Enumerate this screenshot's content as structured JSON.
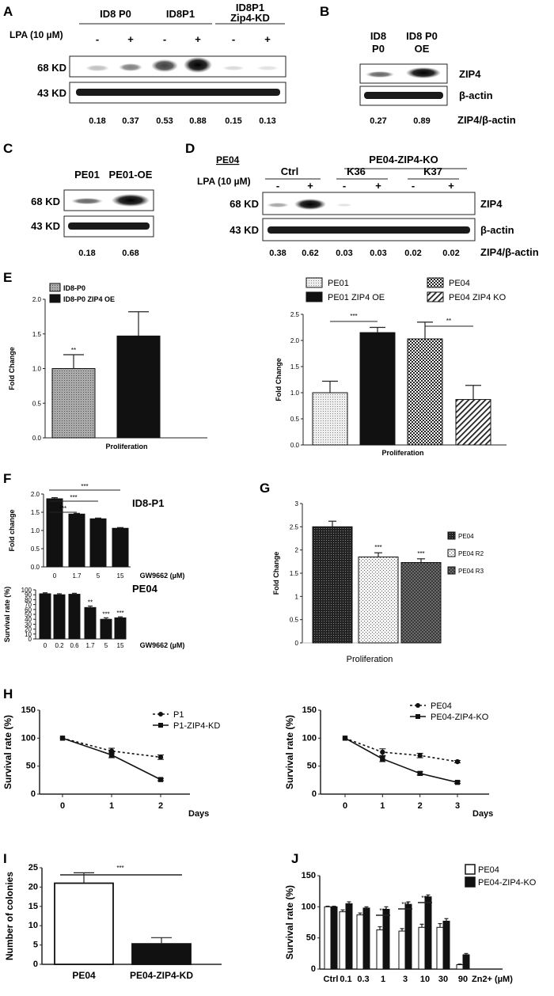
{
  "figure": {
    "A": {
      "panel": "A",
      "groups": [
        "ID8 P0",
        "ID8P1",
        "ID8P1\nZip4-KD"
      ],
      "treatment_label": "LPA (10 µM)",
      "signs": [
        "-",
        "+",
        "-",
        "+",
        "-",
        "+"
      ],
      "rows": [
        "68 KD",
        "43 KD"
      ],
      "quant": [
        "0.18",
        "0.37",
        "0.53",
        "0.88",
        "0.15",
        "0.13"
      ]
    },
    "B": {
      "panel": "B",
      "lanes": [
        "ID8\nP0",
        "ID8 P0\nOE"
      ],
      "rows": [
        "ZIP4",
        "β-actin"
      ],
      "quant": [
        "0.27",
        "0.89"
      ],
      "ratio_label": "ZIP4/β-actin"
    },
    "C": {
      "panel": "C",
      "lanes": [
        "PE01",
        "PE01-OE"
      ],
      "rows": [
        "68 KD",
        "43 KD"
      ],
      "quant": [
        "0.18",
        "0.68"
      ]
    },
    "D": {
      "panel": "D",
      "cell_line": "PE04",
      "group_header": "PE04-ZIP4-KO",
      "groups": [
        "Ctrl",
        "K36",
        "K37"
      ],
      "treatment_label": "LPA (10 µM)",
      "signs": [
        "-",
        "+",
        "-",
        "+",
        "-",
        "+"
      ],
      "rows_left": [
        "68 KD",
        "43 KD"
      ],
      "rows_right": [
        "ZIP4",
        "β-actin"
      ],
      "quant": [
        "0.38",
        "0.62",
        "0.03",
        "0.03",
        "0.02",
        "0.02"
      ],
      "ratio_label": "ZIP4/β-actin"
    },
    "E": {
      "panel": "E"
    },
    "F": {
      "panel": "F",
      "title_top": "ID8-P1",
      "title_bottom": "PE04"
    },
    "G": {
      "panel": "G"
    },
    "H": {
      "panel": "H"
    },
    "I": {
      "panel": "I"
    },
    "J": {
      "panel": "J"
    }
  },
  "chart_data": [
    {
      "id": "E1",
      "type": "bar",
      "title": "",
      "categories": [
        "ID8-P0",
        "ID8-P0 ZIP4 OE"
      ],
      "values": [
        1.0,
        1.47
      ],
      "errors": [
        0.2,
        0.35
      ],
      "xlabel": "Proliferation",
      "ylabel": "Fold Change",
      "ylim": [
        0,
        2.0
      ],
      "yticks": [
        "0.0",
        "0.5",
        "1.0",
        "1.5",
        "2.0"
      ],
      "annotations": [
        "**"
      ],
      "legend": [
        "ID8-P0",
        "ID8-P0 ZIP4 OE"
      ]
    },
    {
      "id": "E2",
      "type": "bar",
      "title": "",
      "categories": [
        "PE01",
        "PE01 ZIP4 OE",
        "PE04",
        "PE04 ZIP4 KO"
      ],
      "values": [
        1.0,
        2.15,
        2.03,
        0.87
      ],
      "errors": [
        0.22,
        0.1,
        0.32,
        0.27
      ],
      "xlabel": "Proliferation",
      "ylabel": "Fold Change",
      "ylim": [
        0,
        2.5
      ],
      "yticks": [
        "0.0",
        "0.5",
        "1.0",
        "1.5",
        "2.0",
        "2.5"
      ],
      "annotations": [
        "***",
        "**"
      ],
      "legend": [
        "PE01",
        "PE04",
        "PE01 ZIP4 OE",
        "PE04 ZIP4 KO"
      ]
    },
    {
      "id": "F1",
      "type": "bar",
      "title": "ID8-P1",
      "categories": [
        "0",
        "1.7",
        "5",
        "15"
      ],
      "values": [
        1.87,
        1.45,
        1.32,
        1.06
      ],
      "errors": [
        0.03,
        0.02,
        0.02,
        0.02
      ],
      "xlabel": "GW9662 (µM)",
      "ylabel": "Fold change",
      "ylim": [
        0,
        2.0
      ],
      "yticks": [
        "0.0",
        "0.5",
        "1.0",
        "1.5",
        "2.0"
      ],
      "annotations": [
        "***",
        "***",
        "***"
      ]
    },
    {
      "id": "F2",
      "type": "bar",
      "title": "PE04",
      "categories": [
        "0",
        "0.2",
        "0.6",
        "1.7",
        "5",
        "15"
      ],
      "values": [
        92,
        90,
        91,
        64,
        40,
        43
      ],
      "errors": [
        2,
        2,
        2,
        3,
        3,
        2
      ],
      "xlabel": "GW9662 (µM)",
      "ylabel": "Survival rate (%)",
      "ylim": [
        0,
        100
      ],
      "yticks": [
        "0",
        "10",
        "20",
        "30",
        "40",
        "50",
        "60",
        "70",
        "80",
        "90",
        "100"
      ],
      "annotations": [
        "**",
        "***",
        "***"
      ]
    },
    {
      "id": "G",
      "type": "bar",
      "title": "",
      "categories": [
        "PE04",
        "PE04 R2",
        "PE04 R3"
      ],
      "values": [
        2.5,
        1.85,
        1.73
      ],
      "errors": [
        0.12,
        0.09,
        0.08
      ],
      "xlabel": "Proliferation",
      "ylabel": "Fold Change",
      "ylim": [
        0,
        3
      ],
      "yticks": [
        "0",
        "0.5",
        "1",
        "1.5",
        "2",
        "2.5",
        "3"
      ],
      "annotations": [
        "***",
        "***"
      ],
      "legend": [
        "PE04",
        "PE04 R2",
        "PE04 R3"
      ]
    },
    {
      "id": "H1",
      "type": "line",
      "title": "",
      "x": [
        0,
        1,
        2
      ],
      "series": [
        {
          "name": "P1",
          "values": [
            100,
            77,
            66
          ],
          "errors": [
            0,
            5,
            4
          ]
        },
        {
          "name": "P1-ZIP4-KD",
          "values": [
            100,
            70,
            26
          ],
          "errors": [
            0,
            5,
            2
          ]
        }
      ],
      "xlabel": "Days",
      "ylabel": "Survival rate (%)",
      "ylim": [
        0,
        150
      ],
      "yticks": [
        "0",
        "50",
        "100",
        "150"
      ],
      "xticks": [
        "0",
        "1",
        "2"
      ]
    },
    {
      "id": "H2",
      "type": "line",
      "title": "",
      "x": [
        0,
        1,
        2,
        3
      ],
      "series": [
        {
          "name": "PE04",
          "values": [
            100,
            75,
            69,
            58
          ],
          "errors": [
            0,
            6,
            4,
            2
          ]
        },
        {
          "name": "PE04-ZIP4-KO",
          "values": [
            100,
            63,
            37,
            21
          ],
          "errors": [
            0,
            5,
            3,
            2
          ]
        }
      ],
      "xlabel": "Days",
      "ylabel": "Survival rate (%)",
      "ylim": [
        0,
        150
      ],
      "yticks": [
        "0",
        "50",
        "100",
        "150"
      ],
      "xticks": [
        "0",
        "1",
        "2",
        "3"
      ]
    },
    {
      "id": "I",
      "type": "bar",
      "title": "",
      "categories": [
        "PE04",
        "PE04-ZIP4-KD"
      ],
      "values": [
        21,
        5.3
      ],
      "errors": [
        2.7,
        1.6
      ],
      "xlabel": "",
      "ylabel": "Number of colonies",
      "ylim": [
        0,
        25
      ],
      "yticks": [
        "0",
        "5",
        "10",
        "15",
        "20",
        "25"
      ],
      "annotations": [
        "***"
      ]
    },
    {
      "id": "J",
      "type": "bar",
      "title": "",
      "categories": [
        "Ctrl",
        "0.1",
        "0.3",
        "1",
        "3",
        "10",
        "30",
        "90"
      ],
      "series": [
        {
          "name": "PE04",
          "values": [
            100,
            92,
            87,
            63,
            61,
            67,
            67,
            7
          ],
          "errors": [
            1,
            3,
            3,
            5,
            4,
            5,
            6,
            1
          ]
        },
        {
          "name": "PE04-ZIP4-KO",
          "values": [
            100,
            105,
            98,
            96,
            104,
            116,
            77,
            23
          ],
          "errors": [
            1,
            3,
            2,
            4,
            4,
            3,
            4,
            2
          ]
        }
      ],
      "xlabel": "Zn2+ (µM)",
      "ylabel": "Survival rate (%)",
      "ylim": [
        0,
        150
      ],
      "yticks": [
        "0",
        "50",
        "100",
        "150"
      ],
      "annotations": [
        "***",
        "***",
        "***"
      ]
    }
  ]
}
